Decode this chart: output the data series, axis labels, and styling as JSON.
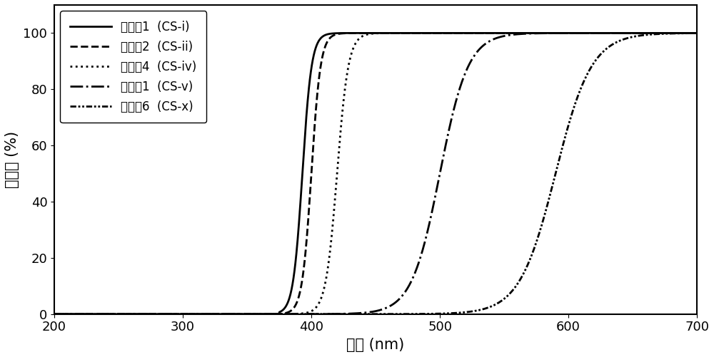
{
  "title": "",
  "xlabel": "波长 (nm)",
  "ylabel": "透射率 (%)",
  "xlim": [
    200,
    700
  ],
  "ylim": [
    0,
    110
  ],
  "yticks": [
    0,
    20,
    40,
    60,
    80,
    100
  ],
  "xticks": [
    200,
    300,
    400,
    500,
    600,
    700
  ],
  "curves": [
    {
      "label": "实施例1  (CS-i)",
      "linestyle": "solid",
      "linewidth": 2.0,
      "color": "#000000",
      "onset": 375,
      "midpoint": 393,
      "steepness": 18
    },
    {
      "label": "实施例2  (CS-ii)",
      "linestyle": "dashed",
      "linewidth": 2.0,
      "color": "#000000",
      "onset": 378,
      "midpoint": 400,
      "steepness": 18
    },
    {
      "label": "实施例4  (CS-iv)",
      "linestyle": "dotted",
      "linewidth": 2.0,
      "color": "#000000",
      "onset": 380,
      "midpoint": 420,
      "steepness": 22
    },
    {
      "label": "比较例1  (CS-v)",
      "linestyle": "dashdot",
      "linewidth": 2.0,
      "color": "#000000",
      "onset": 385,
      "midpoint": 500,
      "steepness": 55
    },
    {
      "label": "比较例6  (CS-x)",
      "linestyle": "dashdotdot",
      "linewidth": 2.0,
      "color": "#000000",
      "onset": 385,
      "midpoint": 590,
      "steepness": 70
    }
  ],
  "legend_loc": "upper left",
  "background_color": "#ffffff",
  "font_size": 13,
  "label_font_size": 15
}
